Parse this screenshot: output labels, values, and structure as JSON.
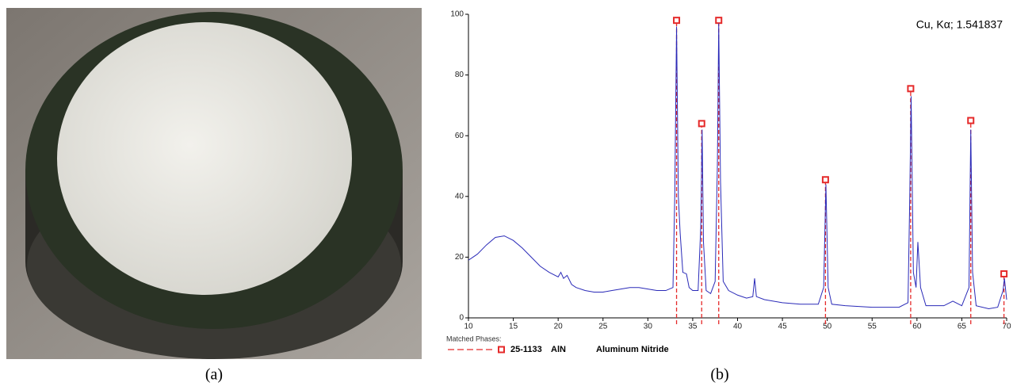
{
  "panels": {
    "a": "(a)",
    "b": "(b)"
  },
  "chart_data": {
    "type": "line",
    "color": "#2a2ab8",
    "annotation": "Cu, Kα; 1.541837",
    "legend_title": "Matched Phases:",
    "x": [
      10,
      10.5,
      11,
      12,
      13,
      14,
      15,
      16,
      17,
      18,
      19,
      20,
      20.3,
      20.6,
      21,
      21.5,
      22,
      23,
      24,
      25,
      26,
      27,
      28,
      29,
      30,
      31,
      32,
      32.8,
      33.0,
      33.2,
      33.4,
      33.6,
      33.9,
      34.3,
      34.6,
      35.0,
      35.6,
      35.9,
      36.05,
      36.2,
      36.5,
      37.0,
      37.5,
      37.75,
      37.9,
      38.1,
      38.4,
      39,
      40,
      41,
      41.7,
      41.9,
      42.1,
      43,
      45,
      47,
      49,
      49.6,
      49.85,
      50.1,
      50.5,
      52,
      55,
      58,
      59,
      59.2,
      59.35,
      59.6,
      59.9,
      60.1,
      60.4,
      61,
      63,
      64,
      65,
      65.8,
      66.0,
      66.2,
      66.6,
      68,
      69,
      69.6,
      69.75,
      70
    ],
    "values": [
      19,
      20,
      21,
      24,
      26.5,
      27,
      25.5,
      23,
      20,
      17,
      15,
      13.5,
      15,
      13,
      14,
      11,
      10,
      9,
      8.5,
      8.5,
      9,
      9.5,
      10,
      10,
      9.5,
      9,
      9,
      10,
      40,
      96,
      40,
      28,
      15,
      14.5,
      10,
      9,
      9,
      30,
      62,
      25,
      9,
      8,
      12,
      50,
      97,
      45,
      12,
      9,
      7.5,
      6.5,
      7,
      13,
      7,
      6,
      5,
      4.5,
      4.5,
      10,
      44,
      10,
      4.5,
      4,
      3.5,
      3.5,
      5,
      40,
      73,
      15,
      10,
      25,
      10,
      4,
      4,
      5.5,
      4,
      10,
      62,
      15,
      4,
      3,
      3.5,
      9,
      13,
      6
    ],
    "reference": {
      "code": "25-1133",
      "formula": "AlN",
      "name": "Aluminum Nitride",
      "color": "#e52a2a",
      "x": [
        33.2,
        36.0,
        37.9,
        49.8,
        59.3,
        66.0,
        69.7
      ],
      "values": [
        98,
        64,
        98,
        45.5,
        75.5,
        65,
        14.5
      ]
    },
    "xlim": [
      10,
      70
    ],
    "ylim": [
      0,
      100
    ],
    "xticks": [
      10,
      15,
      20,
      25,
      30,
      35,
      40,
      45,
      50,
      55,
      60,
      65,
      70
    ],
    "yticks": [
      0,
      20,
      40,
      60,
      80,
      100
    ]
  }
}
